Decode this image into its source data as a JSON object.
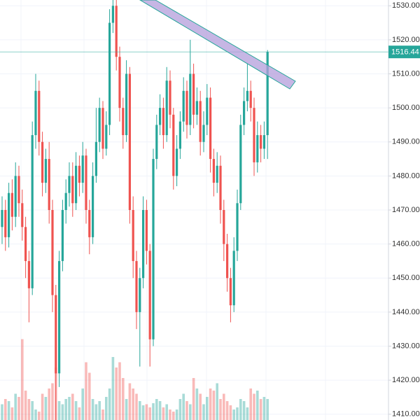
{
  "chart_data": {
    "type": "candlestick",
    "open": [
      1465,
      1470,
      1462,
      1475,
      1468,
      1480,
      1472,
      1465,
      1455,
      1447,
      1492,
      1505,
      1490,
      1478,
      1485,
      1470,
      1445,
      1422,
      1455,
      1470,
      1475,
      1480,
      1472,
      1483,
      1478,
      1486,
      1470,
      1462,
      1480,
      1490,
      1500,
      1488,
      1495,
      1525,
      1530,
      1515,
      1500,
      1492,
      1510,
      1470,
      1455,
      1440,
      1450,
      1470,
      1458,
      1432,
      1485,
      1495,
      1500,
      1492,
      1508,
      1498,
      1480,
      1488,
      1496,
      1505,
      1495,
      1510,
      1498,
      1502,
      1490,
      1495,
      1503,
      1485,
      1478,
      1483,
      1470,
      1460,
      1450,
      1442,
      1458,
      1472,
      1495,
      1502,
      1505,
      1500,
      1484,
      1492,
      1488,
      1492
    ],
    "high": [
      1474,
      1473,
      1478,
      1479,
      1484,
      1483,
      1476,
      1468,
      1458,
      1496,
      1510,
      1508,
      1493,
      1488,
      1490,
      1473,
      1448,
      1458,
      1473,
      1479,
      1484,
      1484,
      1487,
      1486,
      1490,
      1488,
      1473,
      1484,
      1500,
      1503,
      1502,
      1499,
      1529,
      1535,
      1533,
      1518,
      1503,
      1514,
      1512,
      1474,
      1458,
      1453,
      1474,
      1473,
      1460,
      1488,
      1498,
      1504,
      1503,
      1512,
      1511,
      1500,
      1492,
      1499,
      1509,
      1508,
      1520,
      1513,
      1506,
      1505,
      1499,
      1507,
      1506,
      1488,
      1487,
      1486,
      1473,
      1463,
      1453,
      1462,
      1476,
      1498,
      1506,
      1513,
      1508,
      1503,
      1496,
      1495,
      1496,
      1517
    ],
    "low": [
      1460,
      1458,
      1459,
      1464,
      1465,
      1468,
      1461,
      1450,
      1437,
      1445,
      1488,
      1486,
      1474,
      1475,
      1466,
      1440,
      1405,
      1418,
      1452,
      1466,
      1471,
      1468,
      1470,
      1474,
      1475,
      1466,
      1457,
      1460,
      1478,
      1487,
      1485,
      1486,
      1492,
      1522,
      1511,
      1496,
      1488,
      1490,
      1466,
      1450,
      1435,
      1424,
      1447,
      1454,
      1424,
      1430,
      1482,
      1492,
      1488,
      1490,
      1494,
      1476,
      1477,
      1485,
      1493,
      1491,
      1492,
      1494,
      1495,
      1486,
      1487,
      1492,
      1481,
      1474,
      1475,
      1466,
      1455,
      1446,
      1437,
      1440,
      1455,
      1470,
      1492,
      1499,
      1496,
      1480,
      1481,
      1484,
      1485,
      1485
    ],
    "close": [
      1470,
      1462,
      1475,
      1468,
      1480,
      1472,
      1465,
      1455,
      1447,
      1492,
      1505,
      1490,
      1478,
      1485,
      1470,
      1445,
      1422,
      1455,
      1470,
      1475,
      1480,
      1472,
      1483,
      1478,
      1486,
      1470,
      1462,
      1480,
      1490,
      1500,
      1488,
      1495,
      1525,
      1530,
      1515,
      1500,
      1492,
      1510,
      1470,
      1455,
      1440,
      1450,
      1470,
      1458,
      1432,
      1485,
      1495,
      1500,
      1492,
      1508,
      1498,
      1480,
      1488,
      1496,
      1505,
      1495,
      1510,
      1498,
      1502,
      1490,
      1495,
      1503,
      1485,
      1478,
      1483,
      1470,
      1460,
      1450,
      1442,
      1458,
      1472,
      1495,
      1502,
      1505,
      1500,
      1484,
      1492,
      1488,
      1492,
      1516.44
    ],
    "volume": [
      15,
      20,
      18,
      12,
      25,
      22,
      77,
      28,
      20,
      18,
      10,
      8,
      25,
      22,
      30,
      35,
      50,
      18,
      15,
      20,
      22,
      25,
      18,
      12,
      30,
      55,
      45,
      20,
      15,
      18,
      10,
      22,
      30,
      60,
      50,
      55,
      40,
      20,
      35,
      30,
      25,
      18,
      14,
      15,
      12,
      16,
      20,
      18,
      12,
      15,
      10,
      8,
      10,
      20,
      25,
      18,
      15,
      40,
      30,
      25,
      15,
      22,
      30,
      28,
      35,
      20,
      25,
      18,
      14,
      10,
      12,
      20,
      18,
      12,
      30,
      25,
      28,
      20,
      22,
      20
    ],
    "volume_lim": [
      0,
      400
    ],
    "ylim": [
      1408.3,
      1531.7
    ],
    "yticks": [
      {
        "value": 1410,
        "label": "1410.00"
      },
      {
        "value": 1420,
        "label": "1420.00"
      },
      {
        "value": 1430,
        "label": "1430.00"
      },
      {
        "value": 1440,
        "label": "1440.00"
      },
      {
        "value": 1450,
        "label": "1450.00"
      },
      {
        "value": 1460,
        "label": "1460.00"
      },
      {
        "value": 1470,
        "label": "1470.00"
      },
      {
        "value": 1480,
        "label": "1480.00"
      },
      {
        "value": 1490,
        "label": "1490.00"
      },
      {
        "value": 1500,
        "label": "1500.00"
      },
      {
        "value": 1510,
        "label": "1510.00"
      },
      {
        "value": 1520,
        "label": "1520.00"
      },
      {
        "value": 1530,
        "label": "1530.00"
      }
    ],
    "grid": true,
    "up_color": "#26a69a",
    "down_color": "#ef5350"
  }
}
